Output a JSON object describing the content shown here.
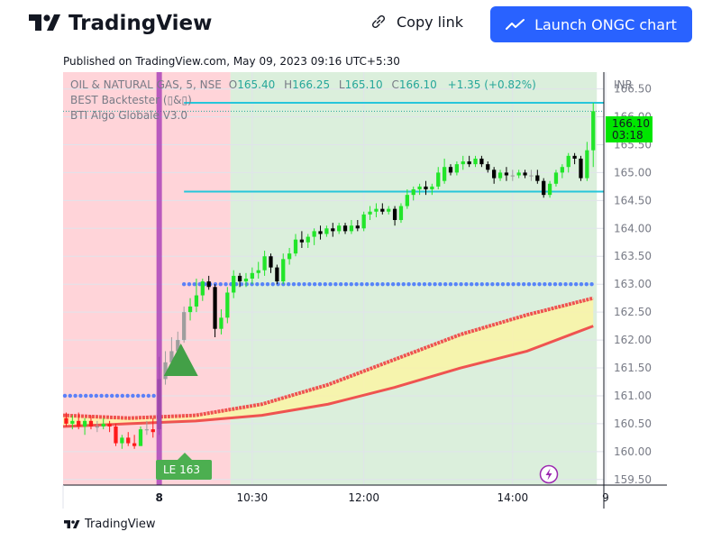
{
  "header": {
    "brand": "TradingView",
    "copy_link_label": "Copy link",
    "launch_label": "Launch ONGC chart"
  },
  "published": "Published on TradingView.com, May 09, 2023 09:16 UTC+5:30",
  "footer_brand": "TradingView",
  "colors": {
    "bull": "#22e52a",
    "bear": "#000000",
    "flat": "#9e9e9e",
    "short_zone": "#ffcdd2",
    "long_zone": "#c8e6c9",
    "cyan_line": "#26c6da",
    "blue_dots": "#2962ff",
    "band_fill": "#fff59d",
    "band_line": "#ef5350",
    "entry_bar": "#9c27b0",
    "price_tag": "#00e600"
  },
  "chart_data": {
    "type": "candlestick",
    "symbol": "OIL & NATURAL GAS, 5, NSE",
    "ohlc_label": {
      "o_key": "O",
      "o": "165.40",
      "h_key": "H",
      "h": "166.25",
      "l_key": "L",
      "l": "165.10",
      "c_key": "C",
      "c": "166.10",
      "change": "+1.35 (+0.82%)"
    },
    "indicators": [
      "BEST Backtester (▯&▯)",
      "BTI Algo Globale V3.0"
    ],
    "currency": "INR",
    "ylim": [
      159.4,
      166.8
    ],
    "y_ticks": [
      166.5,
      166.0,
      165.5,
      165.0,
      164.5,
      164.0,
      163.5,
      163.0,
      162.5,
      162.0,
      161.5,
      161.0,
      160.5,
      160.0,
      159.5
    ],
    "y_tick_labels": [
      "166.50",
      "166.00",
      "165.50",
      "165.00",
      "164.50",
      "164.00",
      "163.50",
      "163.00",
      "162.50",
      "162.00",
      "161.50",
      "161.00",
      "160.50",
      "160.00",
      "159.50"
    ],
    "x_ticks": [
      {
        "label": "8",
        "bar": 15,
        "bold": true
      },
      {
        "label": "10:30",
        "bar": 30,
        "bold": false
      },
      {
        "label": "12:00",
        "bar": 48,
        "bold": false
      },
      {
        "label": "14:00",
        "bar": 72,
        "bold": false
      },
      {
        "label": "9",
        "bar": 87,
        "bold": false
      }
    ],
    "last_price": "166.10",
    "countdown": "03:18",
    "trade_label": "LE 163",
    "candles": [
      {
        "o": 160.6,
        "h": 160.7,
        "l": 160.45,
        "c": 160.5
      },
      {
        "o": 160.5,
        "h": 160.65,
        "l": 160.4,
        "c": 160.55
      },
      {
        "o": 160.55,
        "h": 160.7,
        "l": 160.4,
        "c": 160.45
      },
      {
        "o": 160.45,
        "h": 160.6,
        "l": 160.3,
        "c": 160.55
      },
      {
        "o": 160.55,
        "h": 160.65,
        "l": 160.4,
        "c": 160.45
      },
      {
        "o": 160.45,
        "h": 160.55,
        "l": 160.35,
        "c": 160.45
      },
      {
        "o": 160.45,
        "h": 160.6,
        "l": 160.4,
        "c": 160.5
      },
      {
        "o": 160.5,
        "h": 160.55,
        "l": 160.35,
        "c": 160.45
      },
      {
        "o": 160.45,
        "h": 160.5,
        "l": 160.1,
        "c": 160.15
      },
      {
        "o": 160.15,
        "h": 160.3,
        "l": 160.05,
        "c": 160.25
      },
      {
        "o": 160.25,
        "h": 160.35,
        "l": 160.1,
        "c": 160.15
      },
      {
        "o": 160.15,
        "h": 160.3,
        "l": 160.05,
        "c": 160.1
      },
      {
        "o": 160.1,
        "h": 160.45,
        "l": 160.1,
        "c": 160.4
      },
      {
        "o": 160.4,
        "h": 160.55,
        "l": 160.3,
        "c": 160.4
      },
      {
        "o": 160.4,
        "h": 160.6,
        "l": 160.25,
        "c": 160.35
      },
      {
        "o": 160.4,
        "h": 161.7,
        "l": 160.3,
        "c": 161.3
      },
      {
        "o": 161.3,
        "h": 161.8,
        "l": 161.2,
        "c": 161.6
      },
      {
        "o": 161.6,
        "h": 162.05,
        "l": 161.5,
        "c": 161.8
      },
      {
        "o": 161.8,
        "h": 162.15,
        "l": 161.7,
        "c": 162.0
      },
      {
        "o": 162.0,
        "h": 162.6,
        "l": 161.95,
        "c": 162.5
      },
      {
        "o": 162.5,
        "h": 162.75,
        "l": 162.35,
        "c": 162.6
      },
      {
        "o": 162.6,
        "h": 163.1,
        "l": 162.5,
        "c": 162.8
      },
      {
        "o": 162.8,
        "h": 163.1,
        "l": 162.7,
        "c": 163.05
      },
      {
        "o": 163.05,
        "h": 163.15,
        "l": 162.9,
        "c": 162.95
      },
      {
        "o": 162.95,
        "h": 163.0,
        "l": 162.05,
        "c": 162.2
      },
      {
        "o": 162.2,
        "h": 162.55,
        "l": 162.1,
        "c": 162.4
      },
      {
        "o": 162.4,
        "h": 162.95,
        "l": 162.3,
        "c": 162.85
      },
      {
        "o": 162.85,
        "h": 163.25,
        "l": 162.75,
        "c": 163.15
      },
      {
        "o": 163.15,
        "h": 163.2,
        "l": 162.95,
        "c": 163.05
      },
      {
        "o": 163.05,
        "h": 163.2,
        "l": 162.95,
        "c": 163.1
      },
      {
        "o": 163.1,
        "h": 163.3,
        "l": 163.0,
        "c": 163.2
      },
      {
        "o": 163.2,
        "h": 163.4,
        "l": 163.1,
        "c": 163.25
      },
      {
        "o": 163.25,
        "h": 163.6,
        "l": 163.15,
        "c": 163.5
      },
      {
        "o": 163.5,
        "h": 163.55,
        "l": 163.2,
        "c": 163.3
      },
      {
        "o": 163.3,
        "h": 163.35,
        "l": 163.0,
        "c": 163.05
      },
      {
        "o": 163.05,
        "h": 163.55,
        "l": 163.0,
        "c": 163.45
      },
      {
        "o": 163.45,
        "h": 163.65,
        "l": 163.35,
        "c": 163.55
      },
      {
        "o": 163.55,
        "h": 163.9,
        "l": 163.5,
        "c": 163.8
      },
      {
        "o": 163.8,
        "h": 163.95,
        "l": 163.65,
        "c": 163.75
      },
      {
        "o": 163.75,
        "h": 163.9,
        "l": 163.65,
        "c": 163.85
      },
      {
        "o": 163.85,
        "h": 164.0,
        "l": 163.7,
        "c": 163.95
      },
      {
        "o": 163.95,
        "h": 164.05,
        "l": 163.8,
        "c": 163.9
      },
      {
        "o": 163.9,
        "h": 164.05,
        "l": 163.85,
        "c": 164.0
      },
      {
        "o": 164.0,
        "h": 164.1,
        "l": 163.85,
        "c": 163.95
      },
      {
        "o": 163.95,
        "h": 164.1,
        "l": 163.9,
        "c": 164.05
      },
      {
        "o": 164.05,
        "h": 164.1,
        "l": 163.9,
        "c": 163.95
      },
      {
        "o": 163.95,
        "h": 164.15,
        "l": 163.9,
        "c": 164.05
      },
      {
        "o": 164.05,
        "h": 164.15,
        "l": 163.95,
        "c": 164.0
      },
      {
        "o": 164.0,
        "h": 164.3,
        "l": 163.95,
        "c": 164.25
      },
      {
        "o": 164.25,
        "h": 164.4,
        "l": 164.15,
        "c": 164.3
      },
      {
        "o": 164.3,
        "h": 164.45,
        "l": 164.2,
        "c": 164.35
      },
      {
        "o": 164.35,
        "h": 164.45,
        "l": 164.25,
        "c": 164.3
      },
      {
        "o": 164.3,
        "h": 164.4,
        "l": 164.25,
        "c": 164.35
      },
      {
        "o": 164.35,
        "h": 164.4,
        "l": 164.05,
        "c": 164.15
      },
      {
        "o": 164.15,
        "h": 164.45,
        "l": 164.1,
        "c": 164.4
      },
      {
        "o": 164.4,
        "h": 164.7,
        "l": 164.35,
        "c": 164.6
      },
      {
        "o": 164.6,
        "h": 164.75,
        "l": 164.5,
        "c": 164.7
      },
      {
        "o": 164.7,
        "h": 164.8,
        "l": 164.6,
        "c": 164.75
      },
      {
        "o": 164.75,
        "h": 164.85,
        "l": 164.6,
        "c": 164.7
      },
      {
        "o": 164.7,
        "h": 164.8,
        "l": 164.6,
        "c": 164.75
      },
      {
        "o": 164.75,
        "h": 165.1,
        "l": 164.7,
        "c": 165.0
      },
      {
        "o": 164.85,
        "h": 165.25,
        "l": 164.8,
        "c": 165.1
      },
      {
        "o": 165.1,
        "h": 165.15,
        "l": 164.95,
        "c": 165.0
      },
      {
        "o": 165.0,
        "h": 165.2,
        "l": 164.95,
        "c": 165.15
      },
      {
        "o": 165.15,
        "h": 165.3,
        "l": 165.05,
        "c": 165.2
      },
      {
        "o": 165.2,
        "h": 165.3,
        "l": 165.1,
        "c": 165.15
      },
      {
        "o": 165.15,
        "h": 165.3,
        "l": 165.1,
        "c": 165.25
      },
      {
        "o": 165.25,
        "h": 165.3,
        "l": 165.1,
        "c": 165.15
      },
      {
        "o": 165.15,
        "h": 165.2,
        "l": 165.0,
        "c": 165.05
      },
      {
        "o": 165.05,
        "h": 165.1,
        "l": 164.8,
        "c": 164.9
      },
      {
        "o": 164.9,
        "h": 165.05,
        "l": 164.85,
        "c": 165.0
      },
      {
        "o": 165.0,
        "h": 165.1,
        "l": 164.85,
        "c": 164.95
      },
      {
        "o": 164.95,
        "h": 165.05,
        "l": 164.85,
        "c": 164.95
      },
      {
        "o": 164.95,
        "h": 165.05,
        "l": 164.9,
        "c": 165.0
      },
      {
        "o": 165.0,
        "h": 165.05,
        "l": 164.9,
        "c": 164.95
      },
      {
        "o": 164.95,
        "h": 165.05,
        "l": 164.85,
        "c": 164.95
      },
      {
        "o": 164.95,
        "h": 165.05,
        "l": 164.8,
        "c": 164.85
      },
      {
        "o": 164.85,
        "h": 164.9,
        "l": 164.55,
        "c": 164.6
      },
      {
        "o": 164.6,
        "h": 164.85,
        "l": 164.55,
        "c": 164.8
      },
      {
        "o": 164.8,
        "h": 165.05,
        "l": 164.75,
        "c": 165.0
      },
      {
        "o": 165.0,
        "h": 165.15,
        "l": 164.9,
        "c": 165.1
      },
      {
        "o": 165.1,
        "h": 165.35,
        "l": 165.0,
        "c": 165.3
      },
      {
        "o": 165.3,
        "h": 165.35,
        "l": 165.15,
        "c": 165.25
      },
      {
        "o": 165.25,
        "h": 165.3,
        "l": 164.85,
        "c": 164.9
      },
      {
        "o": 164.9,
        "h": 165.55,
        "l": 164.85,
        "c": 165.4
      },
      {
        "o": 165.4,
        "h": 166.25,
        "l": 165.1,
        "c": 166.1
      }
    ],
    "resistance_level": 164.66,
    "level_166": 166.25,
    "support_dots": 163.0,
    "early_dots": 161.0,
    "band_upper": [
      160.65,
      160.6,
      160.65,
      160.85,
      161.2,
      161.65,
      162.1,
      162.45,
      162.75
    ],
    "band_lower": [
      160.45,
      160.5,
      160.55,
      160.65,
      160.85,
      161.15,
      161.5,
      161.8,
      162.25
    ]
  }
}
